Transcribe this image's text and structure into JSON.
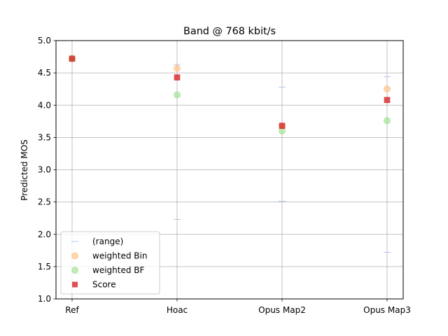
{
  "chart_data": {
    "type": "scatter",
    "title": "Band @ 768 kbit/s",
    "xlabel": "",
    "ylabel": "Predicted MOS",
    "categories": [
      "Ref",
      "Hoac",
      "Opus Map2",
      "Opus Map3"
    ],
    "ylim": [
      1.0,
      5.0
    ],
    "yticks": [
      "1.0",
      "1.5",
      "2.0",
      "2.5",
      "3.0",
      "3.5",
      "4.0",
      "4.5",
      "5.0"
    ],
    "grid": true,
    "legend_position": "lower-left",
    "range": {
      "name": "(range)",
      "color": "#aec7e8",
      "min": [
        4.72,
        2.23,
        2.51,
        1.72
      ],
      "max": [
        4.72,
        4.63,
        4.28,
        4.44
      ]
    },
    "series": [
      {
        "name": "weighted Bin",
        "marker": "circle",
        "color": "#ffbb78",
        "values": [
          4.72,
          4.57,
          3.68,
          4.25
        ]
      },
      {
        "name": "weighted BF",
        "marker": "circle",
        "color": "#98df8a",
        "values": [
          4.72,
          4.16,
          3.6,
          3.76
        ]
      },
      {
        "name": "Score",
        "marker": "square",
        "color": "#d62728",
        "values": [
          4.72,
          4.43,
          3.68,
          4.08
        ]
      }
    ]
  }
}
